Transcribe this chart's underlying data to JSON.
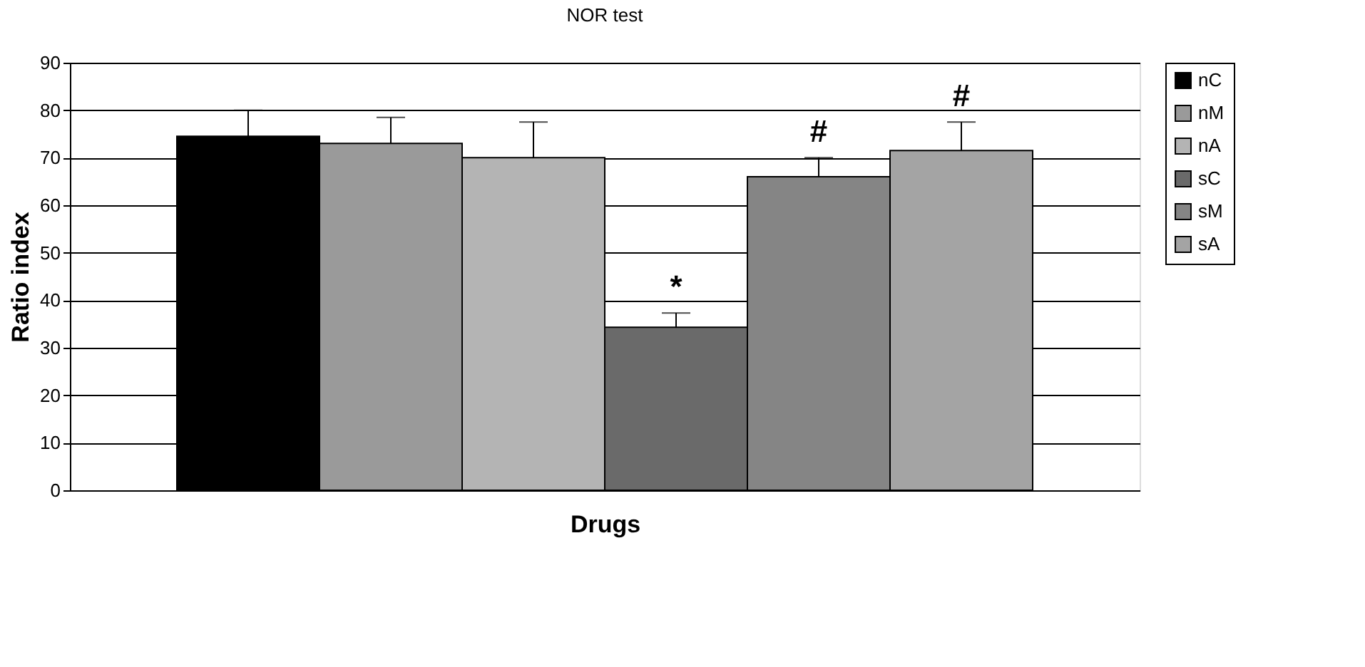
{
  "chart_data": {
    "type": "bar",
    "title": "NOR test",
    "xlabel": "Drugs",
    "ylabel": "Ratio index",
    "categories": [
      null
    ],
    "series": [
      {
        "name": "nC",
        "color": "#000000",
        "values": [
          74.5
        ],
        "errors": [
          5.5
        ]
      },
      {
        "name": "nM",
        "color": "#9a9a9a",
        "values": [
          73
        ],
        "errors": [
          5.5
        ]
      },
      {
        "name": "nA",
        "color": "#b4b4b4",
        "values": [
          70
        ],
        "errors": [
          7.5
        ]
      },
      {
        "name": "sC",
        "color": "#6a6a6a",
        "values": [
          34.3
        ],
        "errors": [
          3
        ],
        "value_labels": [
          "*"
        ]
      },
      {
        "name": "sM",
        "color": "#858585",
        "values": [
          66
        ],
        "errors": [
          4
        ],
        "value_labels": [
          "#"
        ]
      },
      {
        "name": "sA",
        "color": "#a4a4a4",
        "values": [
          71.5
        ],
        "errors": [
          6
        ],
        "value_labels": [
          "#"
        ]
      }
    ],
    "ylim": [
      0,
      90
    ],
    "yticks": [
      0,
      10,
      20,
      30,
      40,
      50,
      60,
      70,
      80,
      90
    ],
    "grid": "y",
    "legend": "right"
  }
}
